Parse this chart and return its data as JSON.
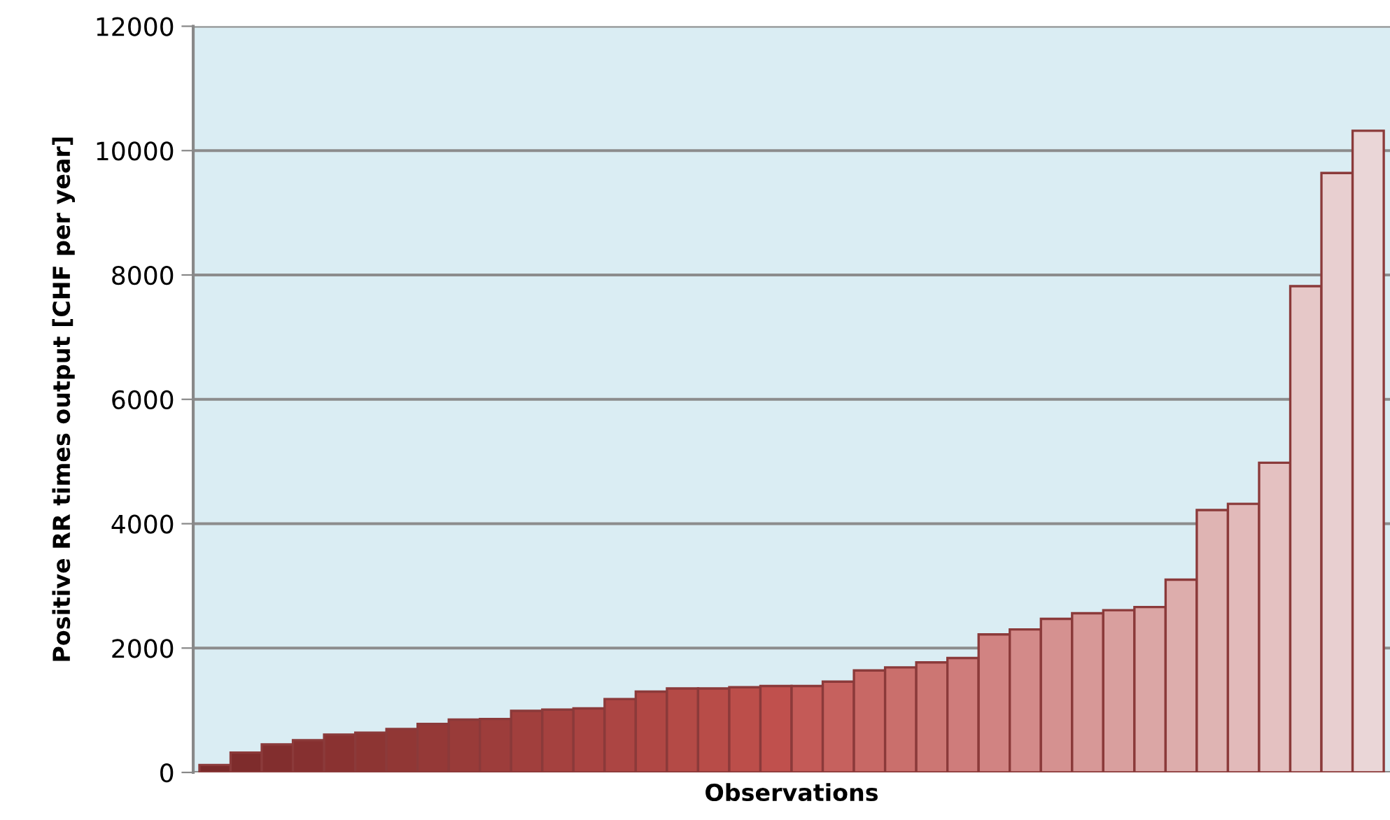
{
  "chart_data": {
    "type": "bar",
    "xlabel": "Observations",
    "ylabel": "Positive RR times output [CHF per year]",
    "categories": [
      null,
      null,
      null,
      null,
      null,
      null,
      null,
      null,
      null,
      null,
      null,
      null,
      null,
      null,
      null,
      null,
      null,
      null,
      null,
      null,
      null,
      null,
      null,
      null,
      null,
      null,
      null,
      null,
      null,
      null,
      null,
      null,
      null,
      null,
      null,
      null,
      null,
      null
    ],
    "values": [
      120,
      320,
      450,
      520,
      610,
      640,
      700,
      780,
      850,
      860,
      990,
      1010,
      1030,
      1180,
      1300,
      1350,
      1350,
      1370,
      1390,
      1390,
      1460,
      1640,
      1690,
      1770,
      1840,
      2220,
      2300,
      2470,
      2560,
      2610,
      2660,
      3100,
      4220,
      4320,
      4980,
      7820,
      9640,
      10320
    ],
    "colors": [
      "#7a2a2a",
      "#7e2c2c",
      "#822e2e",
      "#863030",
      "#8a3231",
      "#8d3533",
      "#913735",
      "#953937",
      "#993b39",
      "#9d3d3b",
      "#a13f3d",
      "#a5413f",
      "#a94341",
      "#ac4543",
      "#b04744",
      "#b44a46",
      "#b84c48",
      "#bc4e4a",
      "#c0504d",
      "#c45a57",
      "#c6615e",
      "#c86865",
      "#ca6f6c",
      "#cc7673",
      "#cf7c7b",
      "#d18382",
      "#d38a89",
      "#d59190",
      "#d79897",
      "#d99f9e",
      "#dba6a5",
      "#ddadac",
      "#dfb4b3",
      "#e2baba",
      "#e4c1c1",
      "#e6c8c8",
      "#e8cfd0",
      "#ead6d7"
    ],
    "ylim": [
      0,
      12000
    ],
    "yticks": [
      0,
      2000,
      4000,
      6000,
      8000,
      10000,
      12000
    ],
    "grid": "y",
    "legend": false
  }
}
